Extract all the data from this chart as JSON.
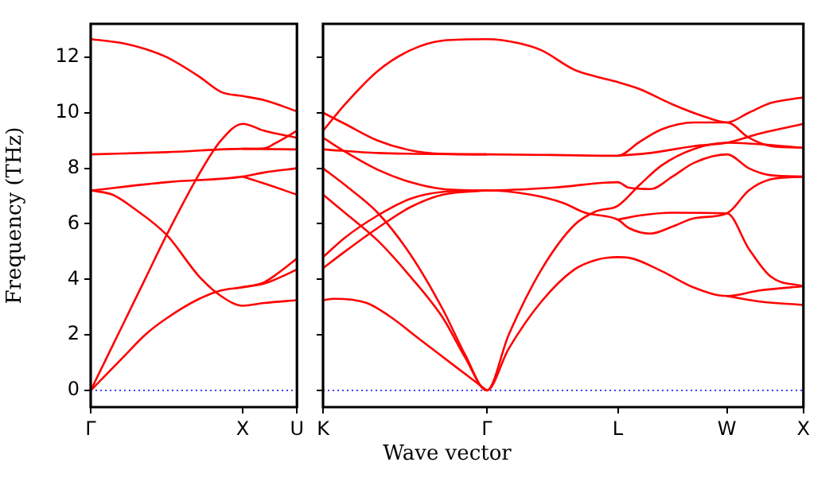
{
  "chart_data": [
    {
      "type": "line",
      "ylabel": "Frequency (THz)",
      "xlabel": "Wave vector",
      "color": "#ff0000",
      "categories": [
        "Γ",
        null,
        null,
        null,
        null,
        null,
        null,
        null,
        null,
        null,
        null,
        null,
        null,
        null,
        "X",
        null,
        null,
        null,
        null,
        "U"
      ],
      "ylim": [
        -0.6,
        13.2
      ],
      "yticks": [
        0,
        2,
        4,
        6,
        8,
        10,
        12
      ],
      "ref_lines": [
        {
          "axis": "y",
          "value": 0,
          "color": "#0000ff",
          "line_style": "dotted"
        }
      ],
      "series": [
        {
          "values": [
            12.65,
            null,
            null,
            12.5,
            null,
            12.3,
            null,
            12.0,
            null,
            null,
            11.3,
            null,
            10.75,
            null,
            10.6,
            null,
            10.45,
            null,
            null,
            10.05
          ]
        },
        {
          "values": [
            0,
            null,
            null,
            2.4,
            null,
            4.0,
            null,
            5.6,
            null,
            null,
            7.8,
            null,
            9.0,
            null,
            9.6,
            null,
            9.35,
            null,
            null,
            9.1
          ]
        },
        {
          "values": [
            8.5,
            null,
            null,
            null,
            null,
            null,
            null,
            8.58,
            null,
            null,
            null,
            null,
            null,
            null,
            8.7,
            null,
            8.72,
            8.9,
            null,
            9.35
          ]
        },
        {
          "values": [
            null,
            null,
            null,
            null,
            null,
            null,
            null,
            null,
            null,
            null,
            null,
            null,
            null,
            null,
            8.7,
            null,
            null,
            null,
            null,
            8.68
          ]
        },
        {
          "values": [
            7.2,
            null,
            null,
            null,
            null,
            null,
            null,
            7.5,
            null,
            null,
            null,
            null,
            null,
            null,
            7.7,
            null,
            7.85,
            null,
            null,
            8.0
          ]
        },
        {
          "values": [
            null,
            null,
            null,
            null,
            null,
            null,
            null,
            null,
            null,
            null,
            null,
            null,
            null,
            null,
            7.7,
            null,
            7.45,
            null,
            null,
            7.05
          ]
        },
        {
          "values": [
            0,
            null,
            null,
            1.2,
            null,
            2.0,
            null,
            2.6,
            null,
            null,
            3.3,
            null,
            3.6,
            null,
            3.72,
            null,
            3.9,
            4.15,
            null,
            4.75
          ]
        },
        {
          "values": [
            null,
            null,
            null,
            null,
            null,
            null,
            null,
            null,
            null,
            null,
            null,
            null,
            null,
            null,
            3.72,
            null,
            3.85,
            null,
            null,
            4.35
          ]
        },
        {
          "values": [
            7.2,
            null,
            7.05,
            null,
            6.55,
            null,
            null,
            5.6,
            null,
            null,
            4.1,
            null,
            3.4,
            null,
            3.05,
            null,
            3.15,
            null,
            null,
            3.25
          ]
        }
      ]
    },
    {
      "type": "line",
      "color": "#ff0000",
      "tick_labels": "x",
      "categories": [
        "K",
        null,
        null,
        null,
        null,
        null,
        null,
        null,
        null,
        null,
        null,
        null,
        null,
        null,
        null,
        "Γ",
        null,
        null,
        null,
        null,
        null,
        null,
        null,
        null,
        null,
        null,
        null,
        "L",
        null,
        null,
        null,
        null,
        null,
        null,
        null,
        null,
        null,
        "W",
        null,
        null,
        null,
        null,
        null,
        null,
        "X"
      ],
      "ylim": [
        -0.6,
        13.2
      ],
      "yticks": [
        0,
        2,
        4,
        6,
        8,
        10,
        12
      ],
      "ref_lines": [
        {
          "axis": "y",
          "value": 0,
          "color": "#0000ff",
          "line_style": "dotted"
        }
      ],
      "series": [
        {
          "values": [
            9.35,
            null,
            10.3,
            null,
            null,
            11.5,
            null,
            null,
            12.25,
            null,
            null,
            12.6,
            null,
            null,
            null,
            12.65,
            null,
            null,
            12.5,
            null,
            12.25,
            null,
            null,
            11.55,
            null,
            11.3,
            null,
            11.1,
            null,
            10.85,
            null,
            null,
            10.3,
            null,
            null,
            9.85,
            null,
            9.65,
            null,
            10.0,
            null,
            10.35,
            null,
            null,
            10.55
          ]
        },
        {
          "values": [
            10.0,
            null,
            9.6,
            null,
            null,
            9.0,
            null,
            null,
            8.65,
            null,
            null,
            8.52,
            null,
            null,
            null,
            8.5,
            null,
            null,
            null,
            null,
            null,
            8.48,
            null,
            null,
            null,
            null,
            null,
            8.45,
            null,
            8.95,
            null,
            9.4,
            null,
            null,
            9.65,
            null,
            null,
            9.65,
            null,
            9.1,
            null,
            8.8,
            null,
            null,
            8.74
          ]
        },
        {
          "values": [
            8.68,
            null,
            null,
            null,
            null,
            8.55,
            null,
            null,
            null,
            null,
            null,
            null,
            null,
            null,
            null,
            8.5,
            null,
            null,
            null,
            null,
            null,
            null,
            null,
            null,
            null,
            null,
            null,
            null,
            null,
            null,
            null,
            null,
            null,
            null,
            null,
            null,
            null,
            null,
            null,
            null,
            null,
            null,
            null,
            null,
            null
          ]
        },
        {
          "values": [
            9.1,
            null,
            8.6,
            null,
            null,
            7.95,
            null,
            null,
            7.5,
            null,
            null,
            7.25,
            null,
            null,
            null,
            7.2,
            null,
            null,
            null,
            null,
            null,
            7.3,
            null,
            null,
            null,
            null,
            null,
            7.5,
            7.3,
            null,
            7.25,
            null,
            7.7,
            null,
            8.2,
            null,
            null,
            8.5,
            null,
            8.0,
            null,
            7.75,
            null,
            null,
            7.7
          ]
        },
        {
          "values": [
            8.0,
            null,
            7.4,
            null,
            null,
            6.4,
            null,
            null,
            4.9,
            null,
            null,
            2.9,
            null,
            1.3,
            null,
            0,
            null,
            2.0,
            null,
            null,
            4.35,
            null,
            null,
            5.95,
            null,
            6.45,
            null,
            6.65,
            null,
            7.4,
            null,
            8.1,
            null,
            null,
            8.7,
            null,
            null,
            8.92,
            null,
            null,
            null,
            null,
            null,
            null,
            8.74
          ]
        },
        {
          "values": [
            7.05,
            null,
            6.4,
            null,
            null,
            5.4,
            null,
            null,
            4.1,
            null,
            null,
            2.6,
            null,
            1.2,
            null,
            0,
            null,
            1.5,
            null,
            null,
            3.2,
            null,
            null,
            4.35,
            null,
            4.7,
            null,
            4.8,
            4.78,
            null,
            null,
            4.3,
            null,
            null,
            3.7,
            null,
            null,
            3.4,
            null,
            null,
            3.6,
            null,
            null,
            null,
            3.75
          ]
        },
        {
          "values": [
            4.8,
            null,
            5.5,
            null,
            null,
            6.3,
            null,
            null,
            6.9,
            null,
            null,
            7.15,
            null,
            null,
            null,
            7.2,
            null,
            null,
            null,
            7.05,
            null,
            null,
            6.75,
            null,
            6.4,
            null,
            null,
            6.15,
            5.85,
            null,
            5.65,
            null,
            5.9,
            null,
            6.2,
            null,
            null,
            6.38,
            null,
            7.2,
            null,
            7.6,
            null,
            null,
            7.7
          ]
        },
        {
          "values": [
            4.4,
            null,
            5.0,
            null,
            null,
            5.85,
            null,
            null,
            6.6,
            null,
            null,
            7.05,
            null,
            null,
            null,
            7.2,
            null,
            null,
            null,
            null,
            null,
            null,
            null,
            null,
            null,
            null,
            null,
            null,
            null,
            null,
            null,
            null,
            null,
            null,
            null,
            null,
            null,
            null,
            null,
            null,
            null,
            null,
            null,
            null,
            null
          ]
        },
        {
          "values": [
            3.25,
            3.3,
            null,
            null,
            3.15,
            null,
            2.7,
            null,
            null,
            1.8,
            null,
            null,
            0.9,
            null,
            null,
            0,
            null,
            null,
            null,
            null,
            null,
            null,
            null,
            null,
            null,
            null,
            null,
            null,
            null,
            null,
            null,
            null,
            null,
            null,
            null,
            null,
            null,
            null,
            null,
            null,
            null,
            null,
            null,
            null,
            null
          ]
        },
        {
          "values": [
            null,
            null,
            null,
            null,
            null,
            null,
            null,
            null,
            null,
            null,
            null,
            null,
            null,
            null,
            null,
            null,
            null,
            null,
            null,
            null,
            null,
            null,
            null,
            null,
            null,
            null,
            null,
            8.45,
            null,
            null,
            8.55,
            null,
            null,
            null,
            8.8,
            null,
            null,
            8.92,
            null,
            null,
            9.25,
            null,
            null,
            null,
            9.6
          ]
        },
        {
          "values": [
            null,
            null,
            null,
            null,
            null,
            null,
            null,
            null,
            null,
            null,
            null,
            null,
            null,
            null,
            null,
            null,
            null,
            null,
            null,
            null,
            null,
            null,
            null,
            null,
            null,
            null,
            null,
            6.15,
            null,
            6.3,
            null,
            null,
            6.4,
            null,
            null,
            null,
            null,
            6.38,
            null,
            5.1,
            null,
            4.1,
            null,
            null,
            3.75
          ]
        },
        {
          "values": [
            null,
            null,
            null,
            null,
            null,
            null,
            null,
            null,
            null,
            null,
            null,
            null,
            null,
            null,
            null,
            null,
            null,
            null,
            null,
            null,
            null,
            null,
            null,
            null,
            null,
            null,
            null,
            null,
            null,
            null,
            null,
            null,
            null,
            null,
            null,
            null,
            null,
            3.4,
            null,
            null,
            3.2,
            null,
            null,
            null,
            3.08
          ]
        }
      ]
    }
  ]
}
